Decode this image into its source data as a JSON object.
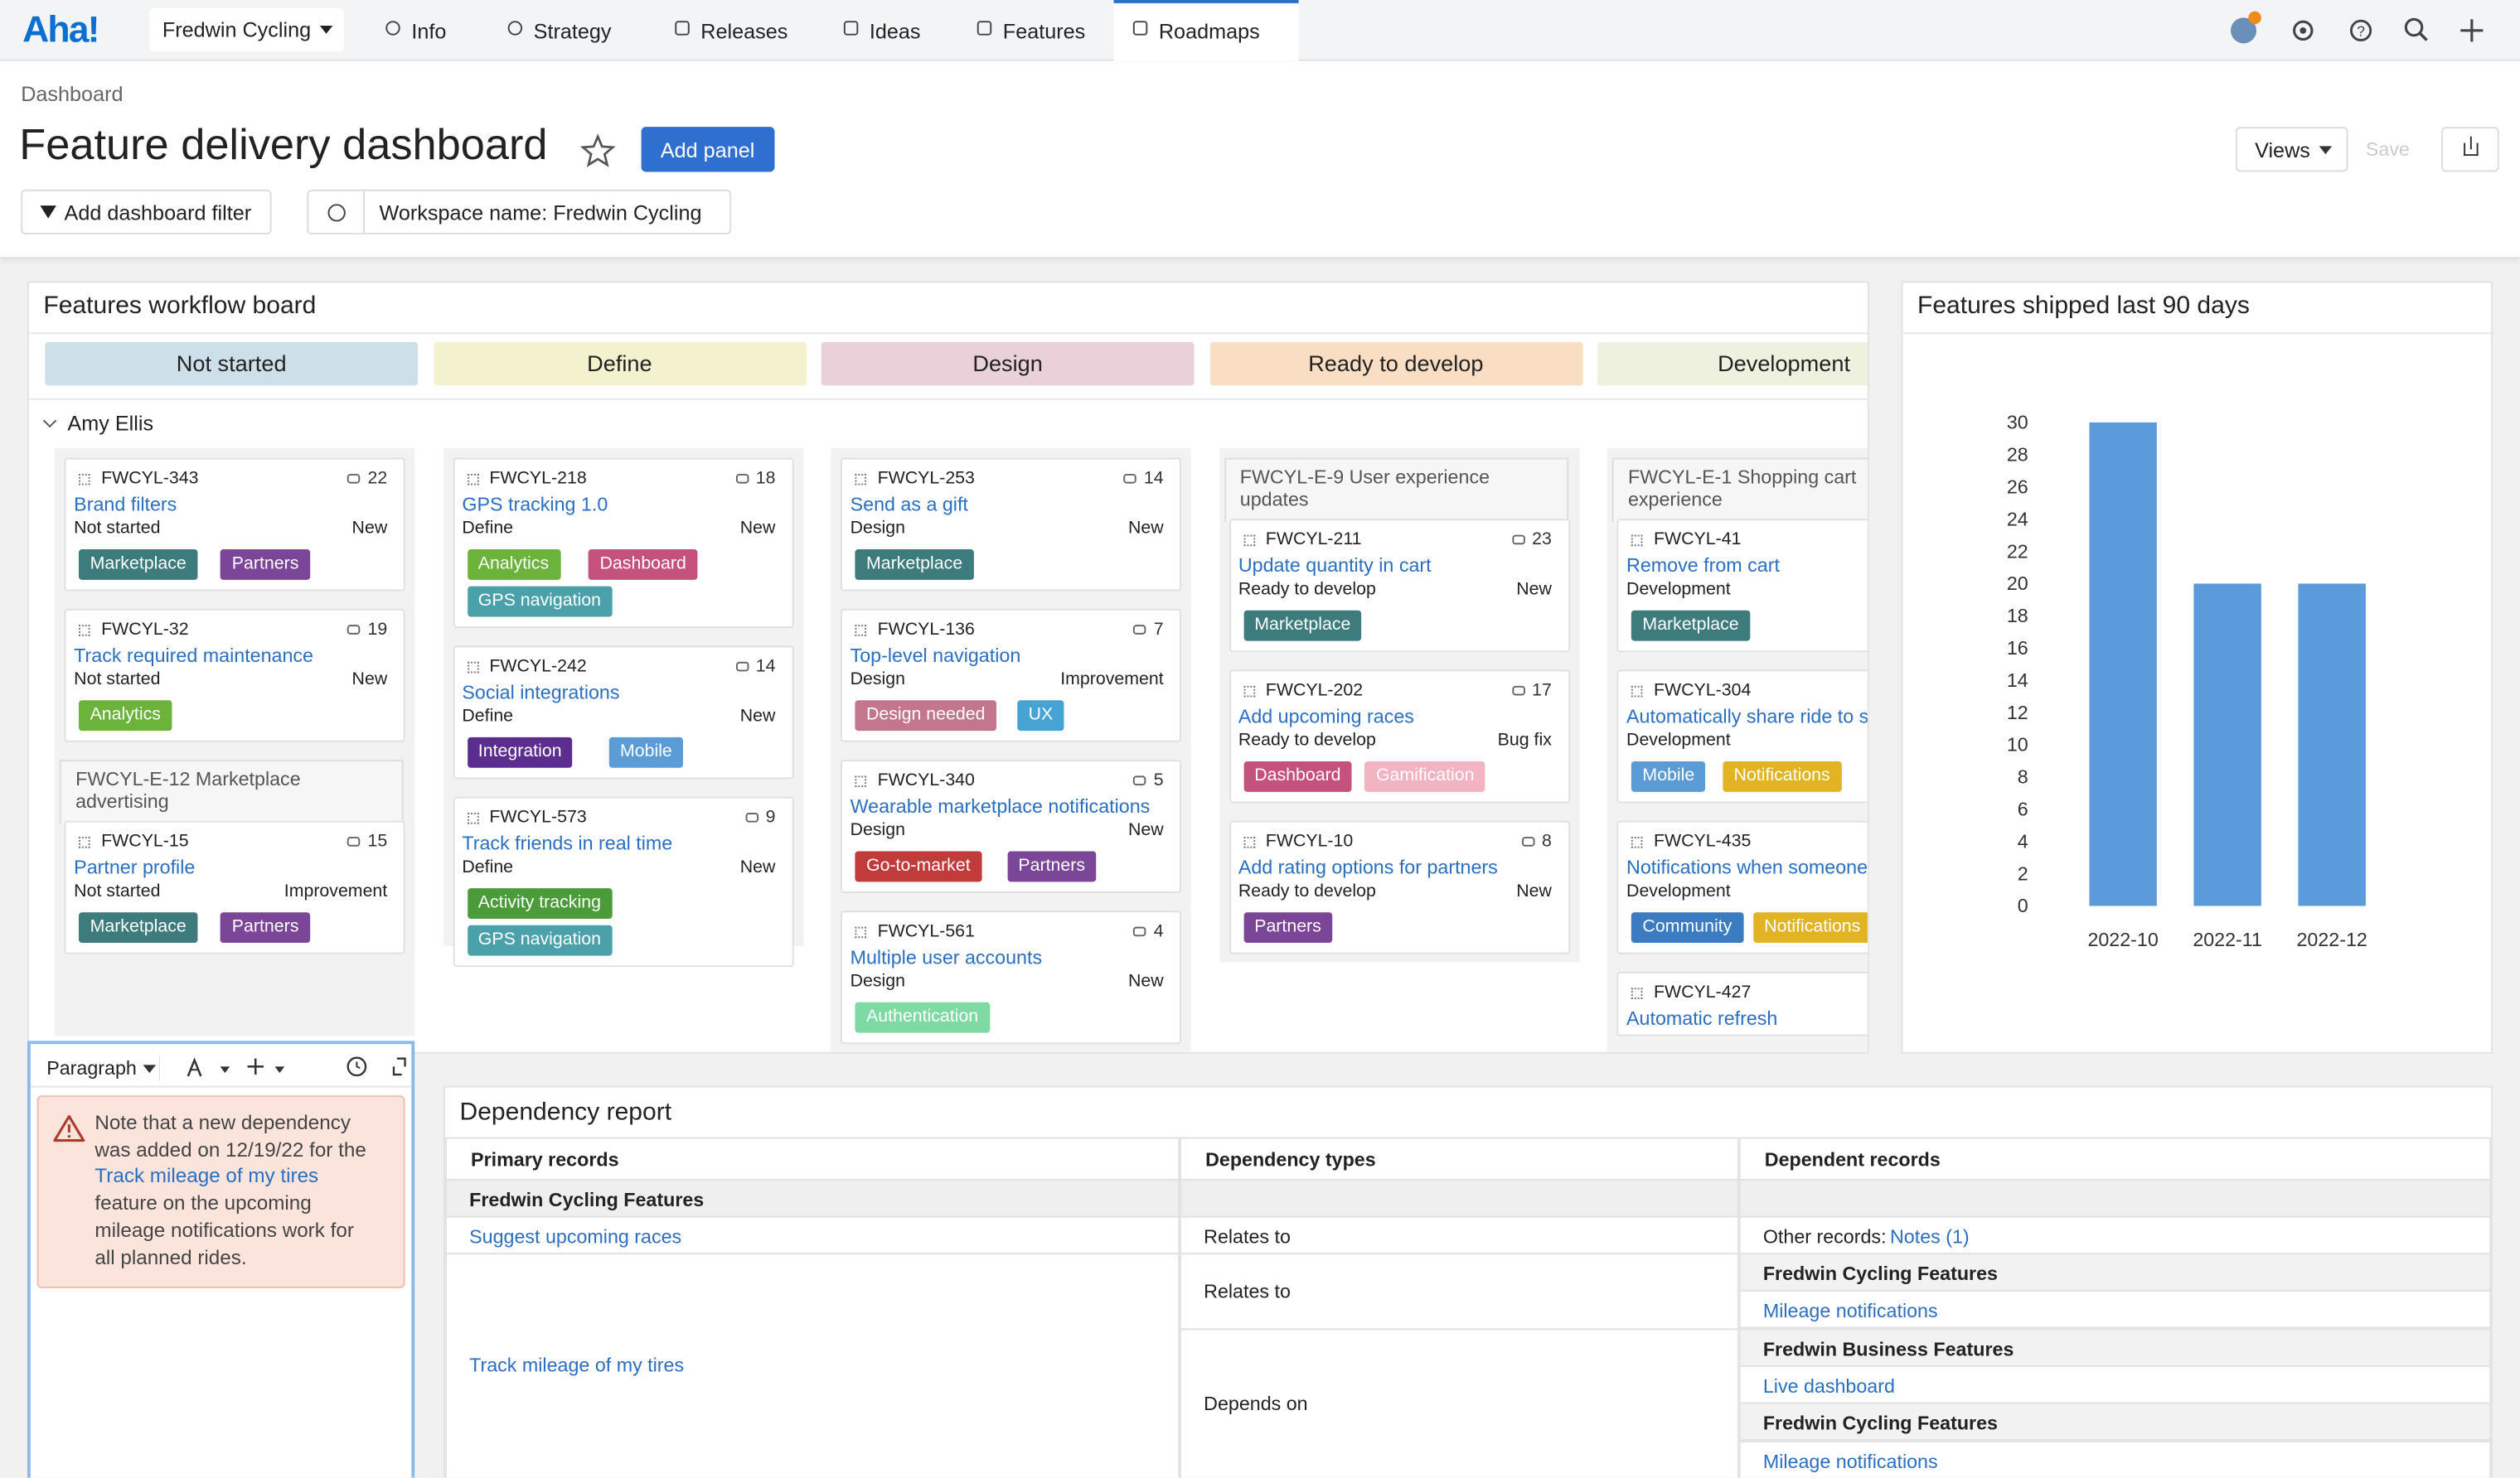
{
  "nav": {
    "logo": "Aha!",
    "workspace": "Fredwin Cycling",
    "tabs": [
      "Info",
      "Strategy",
      "Releases",
      "Ideas",
      "Features",
      "Roadmaps"
    ],
    "active_tab": 5
  },
  "header": {
    "breadcrumb": "Dashboard",
    "title": "Feature delivery dashboard",
    "add_panel": "Add panel",
    "views": "Views",
    "save": "Save",
    "filter_button": "Add dashboard filter",
    "filter": "Workspace name: Fredwin Cycling"
  },
  "board": {
    "title": "Features workflow board",
    "lane": "Amy Ellis",
    "columns": [
      {
        "name": "Not started",
        "color": "#cddfe8",
        "items": [
          {
            "id": "FWCYL-343",
            "name": "Brand filters",
            "status": "Not started",
            "type": "New",
            "comments": "22",
            "tags": [
              {
                "label": "Marketplace",
                "color": "#3d7b7c"
              },
              {
                "label": "Partners",
                "color": "#7b4697"
              }
            ]
          },
          {
            "id": "FWCYL-32",
            "name": "Track required maintenance",
            "status": "Not started",
            "type": "New",
            "comments": "19",
            "tags": [
              {
                "label": "Analytics",
                "color": "#6bb33a"
              }
            ]
          },
          {
            "epic": "FWCYL-E-12 Marketplace advertising"
          },
          {
            "id": "FWCYL-15",
            "name": "Partner profile",
            "status": "Not started",
            "type": "Improvement",
            "comments": "15",
            "tags": [
              {
                "label": "Marketplace",
                "color": "#3d7b7c"
              },
              {
                "label": "Partners",
                "color": "#7b4697"
              }
            ]
          }
        ]
      },
      {
        "name": "Define",
        "color": "#f4f1cf",
        "items": [
          {
            "id": "FWCYL-218",
            "name": "GPS tracking 1.0",
            "status": "Define",
            "type": "New",
            "comments": "18",
            "tags": [
              {
                "label": "Analytics",
                "color": "#6bb33a"
              },
              {
                "label": "Dashboard",
                "color": "#c4527c"
              },
              {
                "label": "GPS navigation",
                "color": "#4aa1a9"
              }
            ]
          },
          {
            "id": "FWCYL-242",
            "name": "Social integrations",
            "status": "Define",
            "type": "New",
            "comments": "14",
            "tags": [
              {
                "label": "Integration",
                "color": "#5b2d8f"
              },
              {
                "label": "Mobile",
                "color": "#5b9cd6"
              }
            ]
          },
          {
            "id": "FWCYL-573",
            "name": "Track friends in real time",
            "status": "Define",
            "type": "New",
            "comments": "9",
            "tags": [
              {
                "label": "Activity tracking",
                "color": "#4c9b3b"
              },
              {
                "label": "GPS navigation",
                "color": "#4aa1a9"
              }
            ]
          }
        ]
      },
      {
        "name": "Design",
        "color": "#e9d0d9",
        "items": [
          {
            "id": "FWCYL-253",
            "name": "Send as a gift",
            "status": "Design",
            "type": "New",
            "comments": "14",
            "tags": [
              {
                "label": "Marketplace",
                "color": "#3d7b7c"
              }
            ]
          },
          {
            "id": "FWCYL-136",
            "name": "Top-level navigation",
            "status": "Design",
            "type": "Improvement",
            "comments": "7",
            "tags": [
              {
                "label": "Design needed",
                "color": "#c4768d"
              },
              {
                "label": "UX",
                "color": "#47a3d3"
              }
            ]
          },
          {
            "id": "FWCYL-340",
            "name": "Wearable marketplace notifications",
            "status": "Design",
            "type": "New",
            "comments": "5",
            "tags": [
              {
                "label": "Go-to-market",
                "color": "#c23b3b"
              },
              {
                "label": "Partners",
                "color": "#7b4697"
              }
            ]
          },
          {
            "id": "FWCYL-561",
            "name": "Multiple user accounts",
            "status": "Design",
            "type": "New",
            "comments": "4",
            "tags": [
              {
                "label": "Authentication",
                "color": "#7fd9a3"
              }
            ]
          }
        ]
      },
      {
        "name": "Ready to develop",
        "color": "#f9dec3",
        "items": [
          {
            "epic": "FWCYL-E-9 User experience updates"
          },
          {
            "id": "FWCYL-211",
            "name": "Update quantity in cart",
            "status": "Ready to develop",
            "type": "New",
            "comments": "23",
            "tags": [
              {
                "label": "Marketplace",
                "color": "#3d7b7c"
              }
            ]
          },
          {
            "id": "FWCYL-202",
            "name": "Add upcoming races",
            "status": "Ready to develop",
            "type": "Bug fix",
            "comments": "17",
            "tags": [
              {
                "label": "Dashboard",
                "color": "#c4527c"
              },
              {
                "label": "Gamification",
                "color": "#f2b3c3"
              }
            ]
          },
          {
            "id": "FWCYL-10",
            "name": "Add rating options for partners",
            "status": "Ready to develop",
            "type": "New",
            "comments": "8",
            "tags": [
              {
                "label": "Partners",
                "color": "#7b4697"
              }
            ]
          }
        ]
      },
      {
        "name": "Development",
        "color": "#eff1df",
        "items": [
          {
            "epic": "FWCYL-E-1 Shopping cart experience"
          },
          {
            "id": "FWCYL-41",
            "name": "Remove from cart",
            "status": "Development",
            "tags": [
              {
                "label": "Marketplace",
                "color": "#3d7b7c"
              }
            ]
          },
          {
            "id": "FWCYL-304",
            "name": "Automatically share ride to social networks",
            "status": "Development",
            "tags": [
              {
                "label": "Mobile",
                "color": "#5b9cd6"
              },
              {
                "label": "Notifications",
                "color": "#e2b424"
              }
            ]
          },
          {
            "id": "FWCYL-435",
            "name": "Notifications when someone",
            "status": "Development",
            "tags": [
              {
                "label": "Community",
                "color": "#3a7bc2"
              },
              {
                "label": "Notifications",
                "color": "#e2b424"
              }
            ]
          },
          {
            "id": "FWCYL-427",
            "name": "Automatic refresh"
          }
        ]
      }
    ]
  },
  "note": {
    "toolbar": "Paragraph",
    "before": [
      "Note that a new dependency",
      "was added on 12/19/22 for the"
    ],
    "link": "Track mileage of my tires",
    "after": [
      "feature on the upcoming",
      "mileage notifications work for",
      "all planned rides."
    ]
  },
  "dependency": {
    "title": "Dependency report",
    "headers": [
      "Primary records",
      "Dependency types",
      "Dependent records"
    ],
    "section": "Fredwin Cycling Features",
    "rows": [
      {
        "primary": "Suggest upcoming races",
        "type": "Relates to",
        "other_label": "Other records:",
        "other_link": "Notes (1)"
      },
      {
        "primary": "Track mileage of my tires",
        "links": [
          {
            "type": "Relates to",
            "records": [
              {
                "group": "Fredwin Cycling Features"
              },
              {
                "link": "Mileage notifications"
              }
            ]
          },
          {
            "type": "Depends on",
            "records": [
              {
                "group": "Fredwin Business Features"
              },
              {
                "link": "Live dashboard"
              },
              {
                "group": "Fredwin Cycling Features"
              },
              {
                "link": "Mileage notifications"
              }
            ]
          }
        ]
      }
    ]
  },
  "chart_data": {
    "type": "bar",
    "title": "Features shipped last 90 days",
    "categories": [
      "2022-10",
      "2022-11",
      "2022-12"
    ],
    "values": [
      30,
      20,
      20
    ],
    "color": "#5b9bdc",
    "ylim": [
      0,
      30
    ],
    "yticks": [
      0,
      2,
      4,
      6,
      8,
      10,
      12,
      14,
      16,
      18,
      20,
      22,
      24,
      26,
      28,
      30
    ],
    "grid": false
  }
}
